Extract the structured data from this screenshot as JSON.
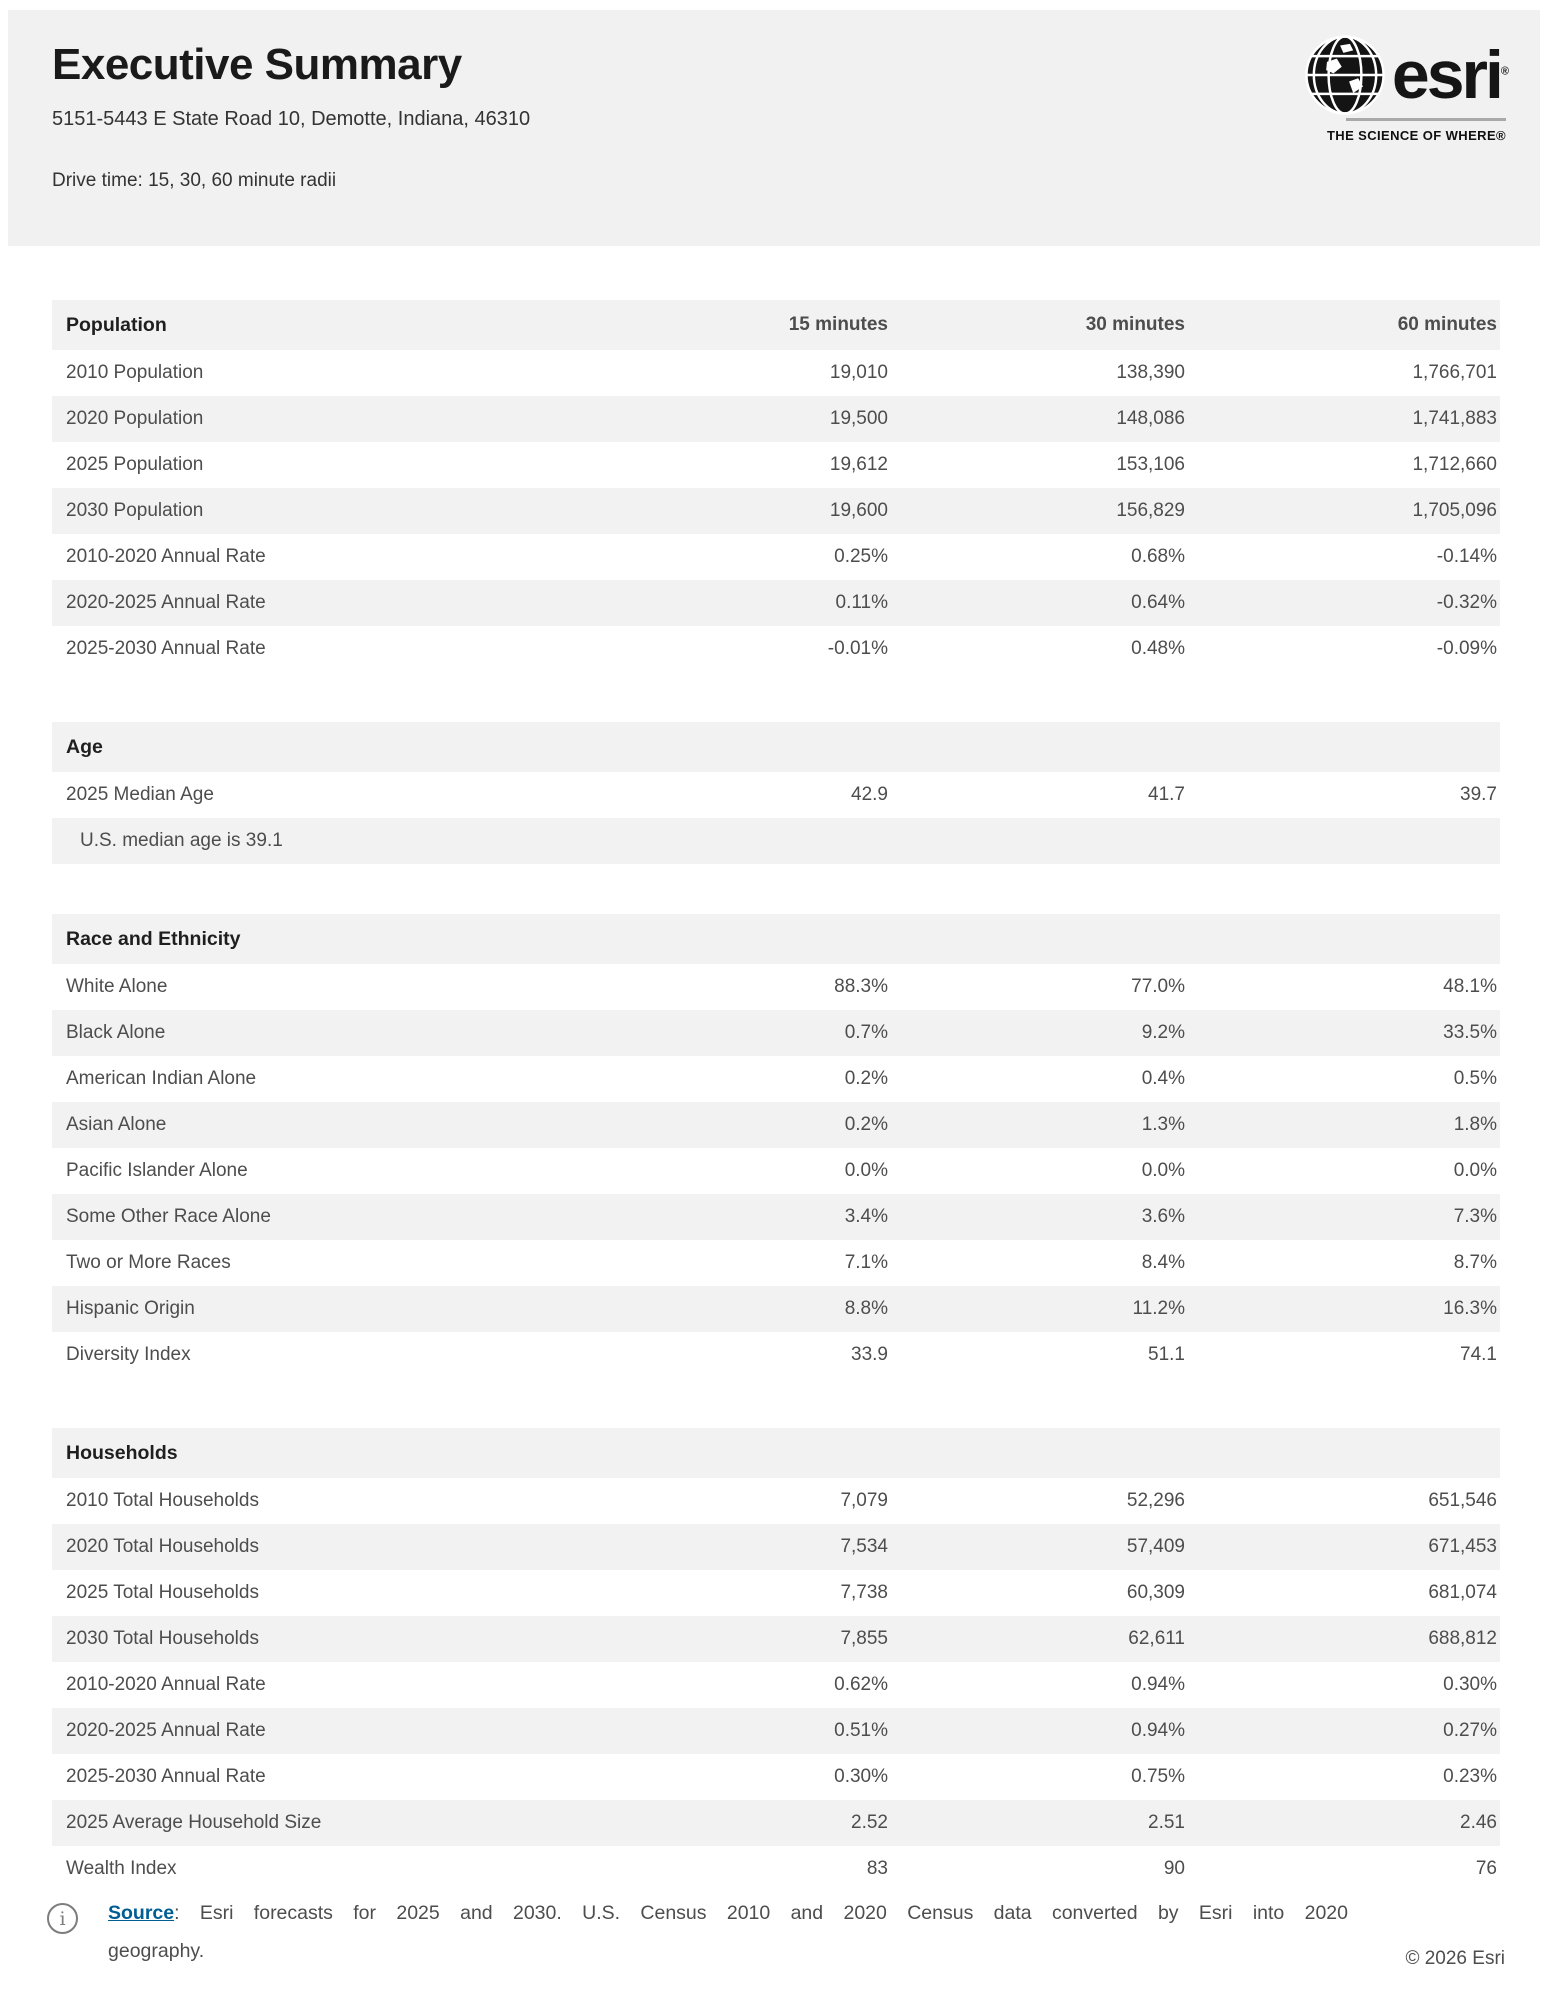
{
  "header": {
    "title": "Executive Summary",
    "address": "5151-5443 E State Road 10, Demotte, Indiana, 46310",
    "subtitle": "Drive time: 15, 30, 60 minute radii",
    "logo": {
      "brand": "esri",
      "registered": "®",
      "tagline": "THE SCIENCE OF WHERE®"
    }
  },
  "table": {
    "column_headers": [
      "15 minutes",
      "30 minutes",
      "60 minutes"
    ],
    "sections": [
      {
        "title": "Population",
        "show_columns": true,
        "rows": [
          {
            "label": "2010 Population",
            "values": [
              "19,010",
              "138,390",
              "1,766,701"
            ]
          },
          {
            "label": "2020 Population",
            "values": [
              "19,500",
              "148,086",
              "1,741,883"
            ]
          },
          {
            "label": "2025 Population",
            "values": [
              "19,612",
              "153,106",
              "1,712,660"
            ]
          },
          {
            "label": "2030 Population",
            "values": [
              "19,600",
              "156,829",
              "1,705,096"
            ]
          },
          {
            "label": "2010-2020 Annual Rate",
            "values": [
              "0.25%",
              "0.68%",
              "-0.14%"
            ]
          },
          {
            "label": "2020-2025 Annual Rate",
            "values": [
              "0.11%",
              "0.64%",
              "-0.32%"
            ]
          },
          {
            "label": "2025-2030 Annual Rate",
            "values": [
              "-0.01%",
              "0.48%",
              "-0.09%"
            ]
          }
        ]
      },
      {
        "title": "Age",
        "show_columns": false,
        "rows": [
          {
            "label": "2025 Median Age",
            "values": [
              "42.9",
              "41.7",
              "39.7"
            ]
          }
        ],
        "note": "U.S. median age is 39.1"
      },
      {
        "title": "Race and Ethnicity",
        "show_columns": false,
        "rows": [
          {
            "label": "White Alone",
            "values": [
              "88.3%",
              "77.0%",
              "48.1%"
            ]
          },
          {
            "label": "Black Alone",
            "values": [
              "0.7%",
              "9.2%",
              "33.5%"
            ]
          },
          {
            "label": "American Indian Alone",
            "values": [
              "0.2%",
              "0.4%",
              "0.5%"
            ]
          },
          {
            "label": "Asian Alone",
            "values": [
              "0.2%",
              "1.3%",
              "1.8%"
            ]
          },
          {
            "label": "Pacific Islander Alone",
            "values": [
              "0.0%",
              "0.0%",
              "0.0%"
            ]
          },
          {
            "label": "Some Other Race Alone",
            "values": [
              "3.4%",
              "3.6%",
              "7.3%"
            ]
          },
          {
            "label": "Two or More Races",
            "values": [
              "7.1%",
              "8.4%",
              "8.7%"
            ]
          },
          {
            "label": "Hispanic Origin",
            "values": [
              "8.8%",
              "11.2%",
              "16.3%"
            ]
          },
          {
            "label": "Diversity Index",
            "values": [
              "33.9",
              "51.1",
              "74.1"
            ]
          }
        ]
      },
      {
        "title": "Households",
        "show_columns": false,
        "rows": [
          {
            "label": "2010 Total Households",
            "values": [
              "7,079",
              "52,296",
              "651,546"
            ]
          },
          {
            "label": "2020 Total Households",
            "values": [
              "7,534",
              "57,409",
              "671,453"
            ]
          },
          {
            "label": "2025 Total Households",
            "values": [
              "7,738",
              "60,309",
              "681,074"
            ]
          },
          {
            "label": "2030 Total Households",
            "values": [
              "7,855",
              "62,611",
              "688,812"
            ]
          },
          {
            "label": "2010-2020 Annual Rate",
            "values": [
              "0.62%",
              "0.94%",
              "0.30%"
            ]
          },
          {
            "label": "2020-2025 Annual Rate",
            "values": [
              "0.51%",
              "0.94%",
              "0.27%"
            ]
          },
          {
            "label": "2025-2030 Annual Rate",
            "values": [
              "0.30%",
              "0.75%",
              "0.23%"
            ]
          },
          {
            "label": "2025  Average Household Size",
            "values": [
              "2.52",
              "2.51",
              "2.46"
            ]
          },
          {
            "label": "Wealth Index",
            "values": [
              "83",
              "90",
              "76"
            ]
          }
        ]
      }
    ]
  },
  "footer": {
    "source_label": "Source",
    "source_line1": ": Esri forecasts for 2025 and 2030. U.S. Census 2010 and 2020 Census data converted by Esri into 2020",
    "source_line2": "geography.",
    "copyright": "© 2026 Esri"
  },
  "colors": {
    "header_band": "#f1f1f1",
    "row_alt": "#f2f2f2",
    "link_blue": "#005e95",
    "text_dark": "#1f1f1f",
    "text_body": "#4d4d4d"
  }
}
